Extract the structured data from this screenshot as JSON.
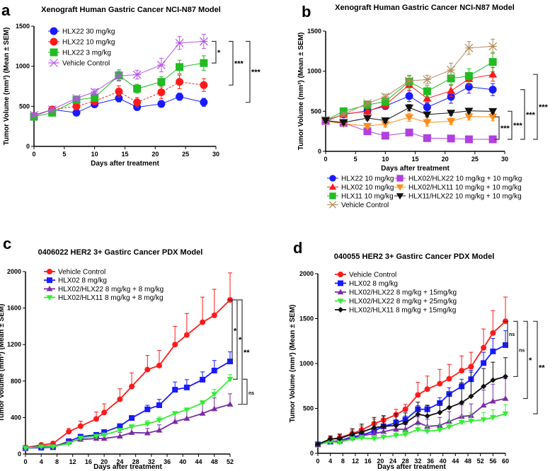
{
  "chart_data": [
    {
      "panel": "a",
      "type": "line",
      "title": "Xenograft Human Gastric Cancer NCI-N87 Model",
      "xlabel": "Days after treatment",
      "ylabel": "Tumor Volume (mm³) (Mean ± SEM)",
      "xlim": [
        0,
        30
      ],
      "ylim": [
        0,
        1500
      ],
      "xticks": [
        0,
        5,
        10,
        15,
        20,
        25,
        30
      ],
      "yticks": [
        0,
        500,
        1000,
        1500
      ],
      "legend": "top-left",
      "error_bars": "two-sided",
      "x": [
        0,
        3,
        7,
        10,
        14,
        17,
        21,
        24,
        28
      ],
      "series": [
        {
          "name": "HLX22 30 mg/kg",
          "color": "#1a1aff",
          "marker": "circle",
          "values": [
            380,
            460,
            420,
            525,
            600,
            490,
            530,
            620,
            550
          ],
          "sem": [
            30,
            30,
            40,
            40,
            45,
            40,
            40,
            45,
            50
          ]
        },
        {
          "name": "HLX22 10 mg/kg",
          "color": "#ff1a1a",
          "marker": "circle",
          "dashed": true,
          "values": [
            380,
            460,
            500,
            565,
            685,
            550,
            675,
            805,
            765
          ],
          "sem": [
            30,
            30,
            40,
            45,
            70,
            60,
            80,
            85,
            80
          ]
        },
        {
          "name": "HLX22 3 mg/kg",
          "color": "#22bb22",
          "marker": "square",
          "values": [
            370,
            420,
            580,
            610,
            885,
            720,
            805,
            990,
            1040
          ],
          "sem": [
            30,
            30,
            40,
            50,
            70,
            55,
            65,
            85,
            90
          ]
        },
        {
          "name": "Vehicle Control",
          "color": "#b455e8",
          "marker": "x",
          "values": [
            390,
            460,
            600,
            680,
            880,
            895,
            1015,
            1290,
            1310
          ],
          "sem": [
            30,
            30,
            30,
            35,
            55,
            55,
            85,
            80,
            90
          ]
        }
      ],
      "annotations": [
        {
          "label": "*",
          "from": "Vehicle Control",
          "to": "HLX22 3 mg/kg"
        },
        {
          "label": "***",
          "from": "Vehicle Control",
          "to": "HLX22 10 mg/kg"
        },
        {
          "label": "***",
          "from": "Vehicle Control",
          "to": "HLX22 30 mg/kg"
        }
      ]
    },
    {
      "panel": "b",
      "type": "line",
      "title": "Xenograft Human Gastric Cancer NCI-N87 Model",
      "xlabel": "Days after treatment",
      "ylabel": "Tumor Volume (mm³) (Mean ± SEM)",
      "xlim": [
        0,
        30
      ],
      "ylim": [
        0,
        1500
      ],
      "xticks": [
        0,
        5,
        10,
        15,
        20,
        25,
        30
      ],
      "yticks": [
        0,
        500,
        1000,
        1500
      ],
      "legend": "bottom",
      "error_bars": "two-sided",
      "x": [
        0,
        3,
        7,
        10,
        14,
        17,
        21,
        24,
        28
      ],
      "series": [
        {
          "name": "HLX22 10 mg/kg",
          "color": "#1a1aff",
          "marker": "circle",
          "values": [
            380,
            460,
            505,
            565,
            690,
            550,
            680,
            805,
            770
          ],
          "sem": [
            30,
            30,
            35,
            40,
            70,
            60,
            80,
            80,
            75
          ]
        },
        {
          "name": "HLX02 10 mg/kg",
          "color": "#ff1a1a",
          "marker": "triangle",
          "values": [
            375,
            465,
            500,
            580,
            830,
            660,
            755,
            905,
            960
          ],
          "sem": [
            30,
            30,
            35,
            45,
            70,
            60,
            70,
            80,
            85
          ]
        },
        {
          "name": "HLX11 10 mg/kg",
          "color": "#22bb22",
          "marker": "square",
          "values": [
            385,
            500,
            580,
            620,
            870,
            750,
            910,
            940,
            1115
          ],
          "sem": [
            30,
            30,
            35,
            45,
            80,
            70,
            80,
            90,
            120
          ]
        },
        {
          "name": "Vehicle Control",
          "color": "#b08a5a",
          "marker": "x",
          "values": [
            390,
            460,
            600,
            680,
            880,
            895,
            1015,
            1290,
            1310
          ],
          "sem": [
            30,
            30,
            30,
            35,
            55,
            55,
            85,
            80,
            90
          ]
        },
        {
          "name": "HLX02/HLX22 10 mg/kg + 10 mg/kg",
          "color": "#b040e0",
          "marker": "square",
          "values": [
            380,
            355,
            250,
            195,
            235,
            165,
            160,
            150,
            150
          ],
          "sem": [
            20,
            20,
            20,
            15,
            20,
            15,
            15,
            15,
            15
          ]
        },
        {
          "name": "HLX02/HLX11 10 mg/kg + 10 mg/kg",
          "color": "#ff8c1a",
          "marker": "triangle-down",
          "values": [
            375,
            345,
            315,
            340,
            425,
            360,
            375,
            435,
            430
          ],
          "sem": [
            25,
            25,
            25,
            40,
            50,
            45,
            40,
            45,
            50
          ]
        },
        {
          "name": "HLX11/HLX22 10 mg/kg + 10 mg/kg",
          "color": "#111111",
          "marker": "triangle-down",
          "values": [
            385,
            360,
            415,
            385,
            545,
            460,
            480,
            505,
            500
          ],
          "sem": [
            25,
            25,
            25,
            25,
            40,
            30,
            30,
            25,
            25
          ]
        }
      ],
      "annotations": [
        {
          "label": "***",
          "from": "HLX02/HLX11 10 mg/kg + 10 mg/kg",
          "to": "HLX02/HLX22 10 mg/kg + 10 mg/kg"
        },
        {
          "label": "***",
          "from": "HLX11/HLX22 10 mg/kg + 10 mg/kg",
          "to": "HLX02/HLX22 10 mg/kg + 10 mg/kg"
        },
        {
          "label": "***",
          "from": "HLX22 10 mg/kg",
          "to": "HLX02/HLX22 10 mg/kg + 10 mg/kg"
        },
        {
          "label": "***",
          "from": "HLX02 10 mg/kg",
          "to": "HLX02/HLX22 10 mg/kg + 10 mg/kg"
        }
      ]
    },
    {
      "panel": "c",
      "type": "line",
      "title": "0406022 HER2 3+ Gastirc Cancer PDX Model",
      "xlabel": "Days after treatment",
      "ylabel": "Tumor Volume (mm³) (Mean ± SEM)",
      "xlim": [
        0,
        52
      ],
      "ylim": [
        0,
        2000
      ],
      "xticks": [
        0,
        4,
        8,
        12,
        16,
        20,
        24,
        28,
        32,
        36,
        40,
        44,
        48,
        52
      ],
      "yticks": [
        0,
        400,
        800,
        1200,
        1600,
        2000
      ],
      "legend": "top-left",
      "error_bars": "upper",
      "x": [
        0,
        4,
        7,
        11,
        14,
        18,
        20,
        24,
        27,
        31,
        34,
        38,
        41,
        45,
        48,
        52
      ],
      "series": [
        {
          "name": "Vehicle Control",
          "color": "#ff1a1a",
          "marker": "circle",
          "values": [
            70,
            100,
            115,
            245,
            305,
            385,
            455,
            600,
            740,
            925,
            970,
            1200,
            1305,
            1445,
            1520,
            1690
          ],
          "sem": [
            10,
            15,
            20,
            35,
            55,
            75,
            95,
            115,
            150,
            155,
            165,
            200,
            235,
            275,
            285,
            295
          ]
        },
        {
          "name": "HLX02 8 mg/kg",
          "color": "#1a1aff",
          "marker": "square",
          "values": [
            65,
            70,
            75,
            140,
            190,
            210,
            240,
            305,
            395,
            490,
            535,
            705,
            730,
            815,
            915,
            1015
          ],
          "sem": [
            10,
            10,
            10,
            15,
            15,
            15,
            20,
            25,
            25,
            45,
            65,
            85,
            85,
            85,
            110,
            105
          ]
        },
        {
          "name": "HLX02/HLX22  8 mg/kg + 8 mg/kg",
          "color": "#7b2aa8",
          "marker": "triangle",
          "values": [
            65,
            90,
            85,
            130,
            160,
            170,
            170,
            195,
            235,
            230,
            260,
            355,
            390,
            445,
            495,
            545
          ],
          "sem": [
            10,
            10,
            10,
            15,
            20,
            25,
            30,
            40,
            70,
            50,
            60,
            100,
            100,
            110,
            120,
            115
          ]
        },
        {
          "name": "HLX02/HLX11  8 mg/kg + 8 mg/kg",
          "color": "#33ee33",
          "marker": "triangle-down",
          "values": [
            65,
            80,
            80,
            115,
            175,
            195,
            210,
            260,
            300,
            330,
            370,
            445,
            485,
            560,
            655,
            820
          ],
          "sem": [
            10,
            10,
            10,
            10,
            15,
            15,
            15,
            20,
            20,
            35,
            35,
            20,
            15,
            25,
            55,
            50
          ]
        }
      ],
      "annotations": [
        {
          "label": "*",
          "from": "Vehicle Control",
          "to": "HLX02 8 mg/kg"
        },
        {
          "label": "*",
          "from": "Vehicle Control",
          "to": "HLX02/HLX11  8 mg/kg + 8 mg/kg"
        },
        {
          "label": "**",
          "from": "Vehicle Control",
          "to": "HLX02/HLX22  8 mg/kg + 8 mg/kg"
        },
        {
          "label": "ns",
          "from": "HLX02/HLX11  8 mg/kg + 8 mg/kg",
          "to": "HLX02/HLX22  8 mg/kg + 8 mg/kg"
        }
      ]
    },
    {
      "panel": "d",
      "type": "line",
      "title": "040055 HER2 3+ Gastirc Cancer PDX Model",
      "xlabel": "Days after treatment",
      "ylabel": "Tumor Volume (mm³) (Mean ± SEM)",
      "xlim": [
        0,
        60
      ],
      "ylim": [
        0,
        2000
      ],
      "xticks": [
        0,
        4,
        8,
        12,
        16,
        20,
        24,
        28,
        32,
        36,
        40,
        44,
        48,
        52,
        56,
        60
      ],
      "yticks": [
        0,
        500,
        1000,
        1500,
        2000
      ],
      "legend": "top-left",
      "error_bars": "upper",
      "x": [
        0,
        4,
        7,
        11,
        14,
        18,
        21,
        25,
        28,
        32,
        35,
        39,
        42,
        46,
        49,
        53,
        56,
        60
      ],
      "series": [
        {
          "name": "Vehicle Control",
          "color": "#ff1a1a",
          "marker": "circle",
          "values": [
            100,
            155,
            175,
            220,
            260,
            330,
            370,
            430,
            490,
            650,
            715,
            775,
            830,
            920,
            965,
            1175,
            1340,
            1470
          ],
          "sem": [
            20,
            30,
            35,
            40,
            45,
            50,
            50,
            60,
            55,
            140,
            145,
            160,
            160,
            165,
            160,
            210,
            250,
            270
          ]
        },
        {
          "name": "HLX02  8 mg/kg",
          "color": "#1a1aff",
          "marker": "square",
          "values": [
            100,
            130,
            140,
            185,
            200,
            250,
            300,
            340,
            375,
            490,
            490,
            560,
            660,
            745,
            825,
            1005,
            1135,
            1205
          ],
          "sem": [
            15,
            20,
            20,
            25,
            30,
            30,
            30,
            35,
            40,
            40,
            40,
            60,
            70,
            80,
            100,
            120,
            145,
            160
          ]
        },
        {
          "name": "HLX02/HLX22  8 mg/kg + 15mg/kg",
          "color": "#7b2aa8",
          "marker": "triangle",
          "values": [
            95,
            130,
            140,
            170,
            195,
            220,
            240,
            270,
            265,
            345,
            300,
            310,
            355,
            410,
            420,
            535,
            580,
            610
          ],
          "sem": [
            15,
            20,
            20,
            25,
            30,
            35,
            40,
            50,
            55,
            60,
            80,
            90,
            110,
            130,
            130,
            170,
            190,
            220
          ]
        },
        {
          "name": "HLX02/HLX22  8 mg/kg + 25mg/kg",
          "color": "#33ee33",
          "marker": "triangle-down",
          "values": [
            95,
            130,
            120,
            160,
            170,
            165,
            180,
            200,
            210,
            265,
            245,
            260,
            295,
            345,
            360,
            375,
            400,
            440
          ],
          "sem": [
            15,
            20,
            20,
            25,
            30,
            35,
            40,
            40,
            45,
            50,
            60,
            65,
            70,
            75,
            90,
            80,
            85,
            100
          ]
        },
        {
          "name": "HLX02/HLX11   8 mg/kg + 15mg/kg",
          "color": "#111111",
          "marker": "diamond",
          "values": [
            100,
            160,
            165,
            215,
            235,
            285,
            300,
            310,
            340,
            435,
            415,
            455,
            510,
            565,
            635,
            745,
            815,
            855
          ],
          "sem": [
            15,
            35,
            50,
            60,
            90,
            115,
            115,
            130,
            110,
            135,
            120,
            120,
            150,
            220,
            270,
            200,
            200,
            210
          ]
        }
      ],
      "annotations": [
        {
          "label": "ns",
          "from": "Vehicle Control",
          "to": "HLX02  8 mg/kg"
        },
        {
          "label": "ns",
          "from": "Vehicle Control",
          "to": "HLX02/HLX11   8 mg/kg + 15mg/kg"
        },
        {
          "label": "*",
          "from": "Vehicle Control",
          "to": "HLX02/HLX22  8 mg/kg + 15mg/kg"
        },
        {
          "label": "**",
          "from": "Vehicle Control",
          "to": "HLX02/HLX22  8 mg/kg + 25mg/kg"
        }
      ]
    }
  ]
}
